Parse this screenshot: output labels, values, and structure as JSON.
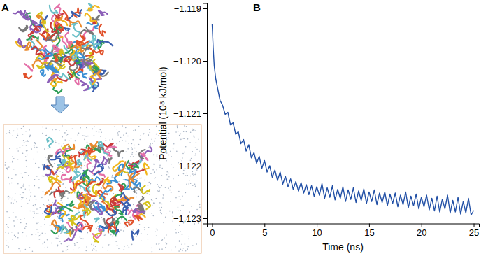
{
  "panel_labels": [
    "A",
    "B"
  ],
  "chart_data": {
    "type": "line",
    "x_label": "Time (ns)",
    "y_label": "Potential (10⁸ kJ/mol)",
    "color": "#2250a6",
    "xlim": [
      -0.5,
      25.5
    ],
    "xticks": [
      0,
      5,
      10,
      15,
      20,
      25
    ],
    "ylim": [
      -1.1231,
      -1.1189
    ],
    "yticks": [
      {
        "value": -1.119,
        "label": "−1.119"
      },
      {
        "value": -1.12,
        "label": "−1.120"
      },
      {
        "value": -1.121,
        "label": "−1.121"
      },
      {
        "value": -1.122,
        "label": "−1.122"
      },
      {
        "value": -1.123,
        "label": "−1.123"
      }
    ],
    "x": [
      0,
      0.1,
      0.2,
      0.35,
      0.5,
      0.75,
      1.0,
      1.25,
      1.5,
      1.75,
      2.0,
      2.25,
      2.5,
      2.75,
      3.0,
      3.25,
      3.5,
      3.75,
      4.0,
      4.25,
      4.5,
      4.75,
      5.0,
      5.25,
      5.5,
      5.75,
      6.0,
      6.25,
      6.5,
      6.75,
      7.0,
      7.25,
      7.5,
      7.75,
      8.0,
      8.25,
      8.5,
      8.75,
      9.0,
      9.25,
      9.5,
      9.75,
      10.0,
      10.25,
      10.5,
      10.75,
      11.0,
      11.25,
      11.5,
      11.75,
      12.0,
      12.25,
      12.5,
      12.75,
      13.0,
      13.25,
      13.5,
      13.75,
      14.0,
      14.25,
      14.5,
      14.75,
      15.0,
      15.25,
      15.5,
      15.75,
      16.0,
      16.25,
      16.5,
      16.75,
      17.0,
      17.25,
      17.5,
      17.75,
      18.0,
      18.25,
      18.5,
      18.75,
      19.0,
      19.25,
      19.5,
      19.75,
      20.0,
      20.25,
      20.5,
      20.75,
      21.0,
      21.25,
      21.5,
      21.75,
      22.0,
      22.25,
      22.5,
      22.75,
      23.0,
      23.25,
      23.5,
      23.75,
      24.0,
      24.25,
      24.5,
      24.75,
      25.0
    ],
    "values": [
      -1.1193,
      -1.11975,
      -1.1201,
      -1.12035,
      -1.1205,
      -1.12075,
      -1.12085,
      -1.12102,
      -1.12098,
      -1.12122,
      -1.12118,
      -1.1214,
      -1.12135,
      -1.12158,
      -1.1215,
      -1.12172,
      -1.1216,
      -1.12185,
      -1.12175,
      -1.12195,
      -1.12182,
      -1.12205,
      -1.1219,
      -1.12212,
      -1.122,
      -1.12222,
      -1.12208,
      -1.12228,
      -1.12212,
      -1.12235,
      -1.1222,
      -1.1224,
      -1.12225,
      -1.12245,
      -1.1223,
      -1.12248,
      -1.12232,
      -1.12252,
      -1.12236,
      -1.12255,
      -1.12238,
      -1.12258,
      -1.1224,
      -1.12256,
      -1.12234,
      -1.12262,
      -1.12242,
      -1.1226,
      -1.12238,
      -1.12265,
      -1.12245,
      -1.12262,
      -1.1224,
      -1.12268,
      -1.12246,
      -1.12264,
      -1.12242,
      -1.1227,
      -1.12248,
      -1.12266,
      -1.12244,
      -1.12272,
      -1.1225,
      -1.12268,
      -1.12246,
      -1.12274,
      -1.12252,
      -1.1227,
      -1.1225,
      -1.12276,
      -1.12254,
      -1.12272,
      -1.12252,
      -1.12278,
      -1.12256,
      -1.12274,
      -1.1225,
      -1.1228,
      -1.12258,
      -1.12276,
      -1.12254,
      -1.12282,
      -1.1226,
      -1.12278,
      -1.12256,
      -1.12284,
      -1.12262,
      -1.12286,
      -1.12258,
      -1.12288,
      -1.12264,
      -1.12282,
      -1.12256,
      -1.1229,
      -1.12266,
      -1.12288,
      -1.1226,
      -1.12292,
      -1.12268,
      -1.1229,
      -1.12262,
      -1.12294,
      -1.12285
    ]
  }
}
